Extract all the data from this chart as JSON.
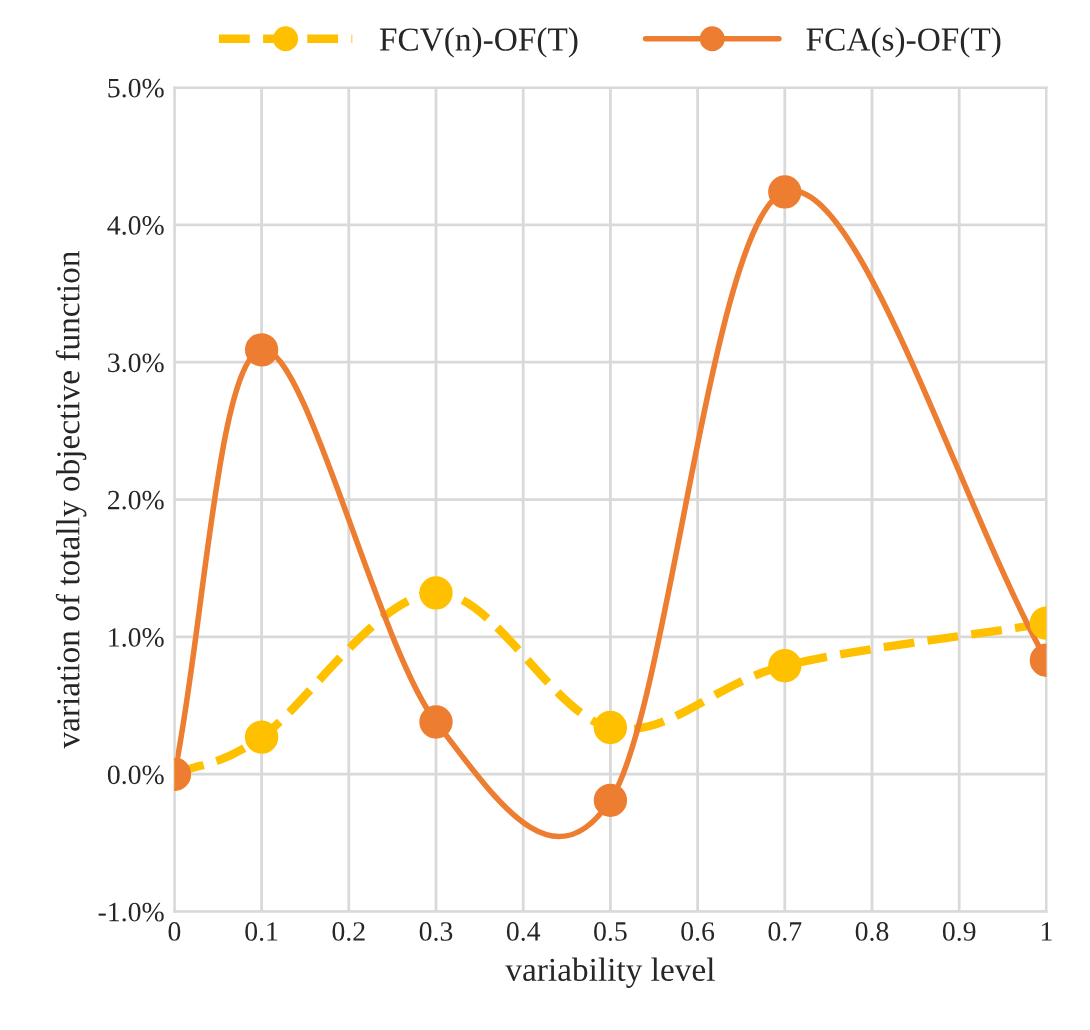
{
  "chart_data": {
    "type": "line",
    "xlabel": "variability level",
    "ylabel": "variation of totally objective function",
    "xlim": [
      0,
      1
    ],
    "xticks": [
      0,
      0.1,
      0.2,
      0.3,
      0.4,
      0.5,
      0.6,
      0.7,
      0.8,
      0.9,
      1
    ],
    "ylim": [
      -1,
      5
    ],
    "yticks": [
      {
        "value": -1,
        "label": "-1.0%"
      },
      {
        "value": 0,
        "label": "0.0%"
      },
      {
        "value": 1,
        "label": "1.0%"
      },
      {
        "value": 2,
        "label": "2.0%"
      },
      {
        "value": 3,
        "label": "3.0%"
      },
      {
        "value": 4,
        "label": "4.0%"
      },
      {
        "value": 5,
        "label": "5.0%"
      }
    ],
    "grid": true,
    "legend": "top",
    "marker": "circle",
    "series": [
      {
        "name": "FCV(n)-OF(T)",
        "color": "#ffc000",
        "line_style": "dashed",
        "x": [
          0,
          0.1,
          0.3,
          0.5,
          0.7,
          1
        ],
        "values": [
          0,
          0.27,
          1.32,
          0.34,
          0.79,
          1.1
        ]
      },
      {
        "name": "FCA(s)-OF(T)",
        "color": "#ed7d31",
        "line_style": "solid",
        "x": [
          0,
          0.1,
          0.3,
          0.5,
          0.7,
          1
        ],
        "values": [
          0,
          3.09,
          0.38,
          -0.19,
          4.24,
          0.83
        ]
      }
    ]
  }
}
